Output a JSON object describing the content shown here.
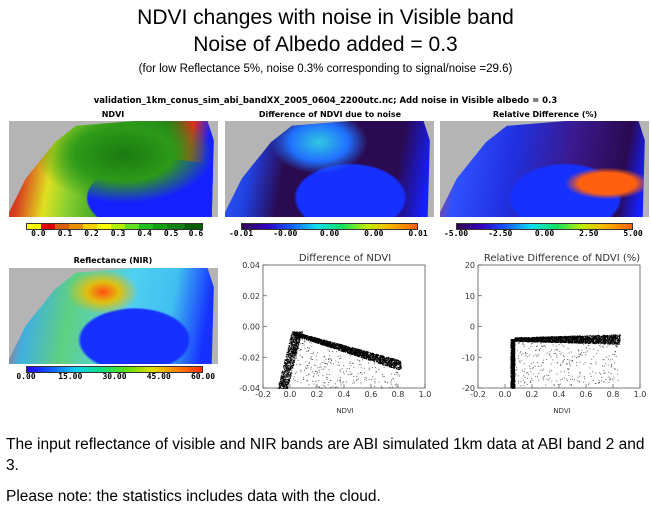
{
  "title_line1": "NDVI changes with noise in Visible band",
  "title_line2": "Noise of Albedo added = 0.3",
  "subtitle": "(for low Reflectance 5%, noise 0.3% corresponding to signal/noise =29.6)",
  "figure": {
    "header": "validation_1km_conus_sim_abi_bandXX_2005_0604_2200utc.nc;    Add noise in Visible albedo = 0.3",
    "panels": [
      {
        "title": "NDVI",
        "colorbar_labels": [
          "0.0",
          "0.1",
          "0.2",
          "0.3",
          "0.4",
          "0.5",
          "0.6"
        ]
      },
      {
        "title": "Difference of NDVI due to noise",
        "colorbar_labels": [
          "-0.01",
          "-0.00",
          "0.00",
          "0.00",
          "0.01"
        ]
      },
      {
        "title": "Relative Difference (%)",
        "colorbar_labels": [
          "-5.00",
          "-2.50",
          "0.00",
          "2.50",
          "5.00"
        ]
      },
      {
        "title": "Reflectance (NIR)",
        "colorbar_labels": [
          "0.00",
          "15.00",
          "30.00",
          "45.00",
          "60.00"
        ]
      }
    ]
  },
  "chart_data": [
    {
      "type": "scatter",
      "title": "Difference of NDVI",
      "xlabel": "NDVI",
      "ylabel": "",
      "xlim": [
        -0.2,
        1.0
      ],
      "ylim": [
        -0.04,
        0.04
      ],
      "xticks": [
        "-0.2",
        "0.0",
        "0.2",
        "0.4",
        "0.6",
        "0.8",
        "1.0"
      ],
      "yticks": [
        "0.04",
        "0.02",
        "0.00",
        "-0.02",
        "-0.04"
      ],
      "series": [
        {
          "name": "vertical branch",
          "x_range": [
            -0.1,
            0.05
          ],
          "y_range": [
            -0.04,
            -0.003
          ]
        },
        {
          "name": "main band",
          "from": [
            0.02,
            -0.003
          ],
          "to": [
            0.82,
            -0.022
          ]
        }
      ]
    },
    {
      "type": "scatter",
      "title": "Relative Difference of NDVI (%)",
      "xlabel": "NDVI",
      "ylabel": "",
      "xlim": [
        -0.2,
        1.0
      ],
      "ylim": [
        -20,
        20
      ],
      "xticks": [
        "-0.2",
        "0.0",
        "0.2",
        "0.4",
        "0.6",
        "0.8",
        "1.0"
      ],
      "yticks": [
        "20",
        "10",
        "0",
        "-10",
        "-20"
      ],
      "series": [
        {
          "name": "vertical branch",
          "x_range": [
            0.04,
            0.07
          ],
          "y_range": [
            -20,
            -4
          ]
        },
        {
          "name": "main band",
          "from": [
            0.07,
            -3.5
          ],
          "to": [
            0.85,
            -2.5
          ]
        }
      ]
    }
  ],
  "body": {
    "line1": "The input reflectance of visible and NIR bands are ABI simulated 1km data at ABI band 2 and 3.",
    "line2": "Please note: the statistics includes data with the cloud."
  }
}
